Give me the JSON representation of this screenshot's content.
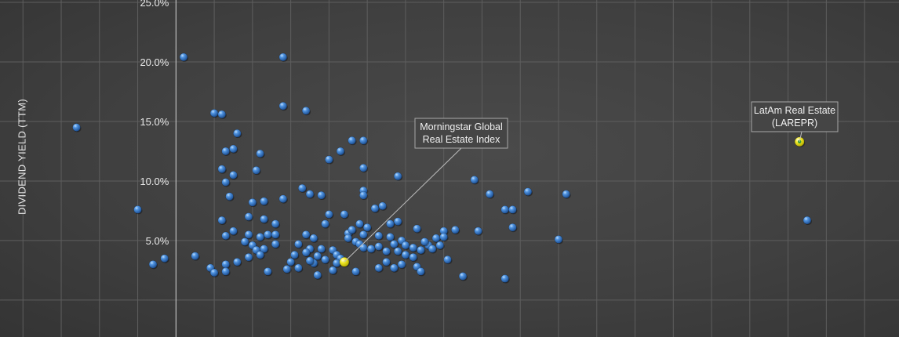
{
  "chart_data": {
    "type": "scatter",
    "title": "",
    "ylabel": "DIVIDEND YIELD (TTM)",
    "xlabel": "",
    "y_ticks": [
      "5.0%",
      "10.0%",
      "15.0%",
      "20.0%",
      "25.0%"
    ],
    "y_tick_values": [
      5,
      10,
      15,
      20,
      25
    ],
    "ylim": [
      -3.1,
      25.2
    ],
    "xlim": [
      -4.6,
      18.9
    ],
    "grid": true,
    "colors": {
      "point": "#3a78c9",
      "highlight": "#f4ec2a",
      "grid": "#5e5e5e",
      "axis": "#cfcfcf"
    },
    "series": [
      {
        "points": [
          [
            -2.6,
            14.5
          ],
          [
            0.2,
            20.4
          ],
          [
            1.0,
            15.7
          ],
          [
            1.2,
            15.6
          ],
          [
            1.6,
            14.0
          ],
          [
            1.3,
            12.5
          ],
          [
            1.5,
            12.7
          ],
          [
            2.2,
            12.3
          ],
          [
            1.2,
            11.0
          ],
          [
            1.5,
            10.5
          ],
          [
            2.1,
            10.9
          ],
          [
            1.3,
            9.9
          ],
          [
            1.4,
            8.7
          ],
          [
            2.0,
            8.2
          ],
          [
            2.3,
            8.3
          ],
          [
            1.2,
            6.7
          ],
          [
            1.9,
            7.0
          ],
          [
            2.3,
            6.8
          ],
          [
            2.6,
            6.4
          ],
          [
            1.5,
            5.8
          ],
          [
            1.3,
            5.4
          ],
          [
            1.9,
            5.5
          ],
          [
            2.2,
            5.3
          ],
          [
            2.4,
            5.5
          ],
          [
            2.6,
            5.5
          ],
          [
            1.8,
            4.9
          ],
          [
            2.0,
            4.6
          ],
          [
            2.6,
            4.7
          ],
          [
            2.1,
            4.2
          ],
          [
            2.3,
            4.3
          ],
          [
            2.2,
            3.8
          ],
          [
            1.9,
            3.6
          ],
          [
            1.6,
            3.2
          ],
          [
            1.3,
            3.0
          ],
          [
            -1.0,
            7.6
          ],
          [
            0.5,
            3.7
          ],
          [
            -0.3,
            3.5
          ],
          [
            -0.6,
            3.0
          ],
          [
            2.8,
            20.4
          ],
          [
            2.8,
            16.3
          ],
          [
            3.4,
            15.9
          ],
          [
            2.8,
            8.5
          ],
          [
            3.3,
            9.4
          ],
          [
            3.5,
            8.9
          ],
          [
            3.8,
            8.8
          ],
          [
            4.3,
            12.5
          ],
          [
            4.0,
            11.8
          ],
          [
            4.0,
            7.2
          ],
          [
            4.4,
            7.2
          ],
          [
            3.9,
            6.4
          ],
          [
            4.5,
            5.6
          ],
          [
            4.6,
            5.9
          ],
          [
            4.5,
            5.2
          ],
          [
            4.8,
            6.4
          ],
          [
            5.0,
            6.1
          ],
          [
            4.9,
            5.5
          ],
          [
            4.7,
            4.9
          ],
          [
            4.8,
            4.7
          ],
          [
            4.9,
            4.4
          ],
          [
            5.1,
            4.3
          ],
          [
            4.6,
            13.4
          ],
          [
            4.9,
            13.4
          ],
          [
            4.9,
            11.1
          ],
          [
            4.9,
            9.2
          ],
          [
            4.9,
            8.8
          ],
          [
            5.2,
            7.7
          ],
          [
            5.4,
            7.9
          ],
          [
            5.6,
            6.4
          ],
          [
            5.8,
            10.4
          ],
          [
            5.3,
            5.4
          ],
          [
            5.6,
            5.3
          ],
          [
            5.9,
            5.0
          ],
          [
            5.7,
            4.7
          ],
          [
            6.0,
            4.6
          ],
          [
            6.2,
            4.4
          ],
          [
            5.3,
            4.5
          ],
          [
            5.5,
            4.1
          ],
          [
            5.8,
            4.1
          ],
          [
            6.0,
            3.8
          ],
          [
            6.2,
            3.6
          ],
          [
            6.4,
            4.2
          ],
          [
            6.6,
            4.6
          ],
          [
            6.5,
            4.9
          ],
          [
            6.8,
            5.2
          ],
          [
            7.0,
            5.8
          ],
          [
            7.3,
            5.9
          ],
          [
            7.0,
            5.3
          ],
          [
            6.7,
            4.3
          ],
          [
            6.9,
            4.6
          ],
          [
            6.3,
            6.0
          ],
          [
            5.8,
            6.6
          ],
          [
            7.1,
            3.4
          ],
          [
            3.4,
            5.5
          ],
          [
            3.6,
            5.2
          ],
          [
            3.2,
            4.7
          ],
          [
            3.5,
            4.3
          ],
          [
            3.4,
            4.0
          ],
          [
            3.8,
            4.3
          ],
          [
            3.7,
            3.7
          ],
          [
            4.1,
            4.2
          ],
          [
            4.2,
            3.8
          ],
          [
            3.9,
            3.4
          ],
          [
            4.3,
            3.5
          ],
          [
            4.2,
            3.1
          ],
          [
            3.6,
            3.1
          ],
          [
            3.1,
            3.8
          ],
          [
            3.0,
            3.2
          ],
          [
            3.5,
            3.3
          ],
          [
            4.1,
            2.5
          ],
          [
            4.7,
            2.4
          ],
          [
            5.5,
            3.2
          ],
          [
            5.7,
            2.7
          ],
          [
            5.9,
            3.0
          ],
          [
            6.3,
            2.8
          ],
          [
            6.4,
            2.4
          ],
          [
            5.3,
            2.7
          ],
          [
            7.5,
            2.0
          ],
          [
            7.8,
            10.1
          ],
          [
            8.2,
            8.9
          ],
          [
            9.2,
            9.1
          ],
          [
            8.6,
            7.6
          ],
          [
            8.8,
            7.6
          ],
          [
            8.8,
            6.1
          ],
          [
            10.2,
            8.9
          ],
          [
            10.0,
            5.1
          ],
          [
            7.9,
            5.8
          ],
          [
            8.6,
            1.8
          ],
          [
            16.5,
            6.7
          ],
          [
            1.3,
            2.4
          ],
          [
            0.9,
            2.7
          ],
          [
            1.0,
            2.3
          ],
          [
            2.4,
            2.4
          ],
          [
            2.9,
            2.6
          ],
          [
            3.2,
            2.7
          ],
          [
            3.7,
            2.1
          ]
        ]
      },
      {
        "name": "Morningstar Global Real Estate Index",
        "label_lines": [
          "Morningstar Global",
          "Real Estate Index"
        ],
        "points": [
          [
            4.4,
            3.2
          ]
        ]
      },
      {
        "name": "LatAm Real Estate (LAREPR)",
        "label_lines": [
          "LatAm Real Estate",
          "(LAREPR)"
        ],
        "points": [
          [
            16.3,
            13.3
          ]
        ]
      }
    ]
  }
}
